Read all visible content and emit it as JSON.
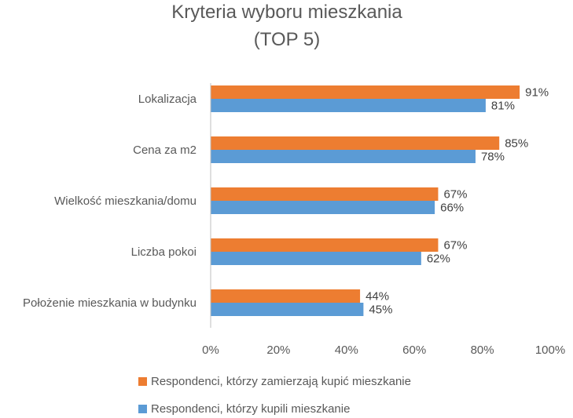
{
  "chart_data": {
    "type": "bar",
    "orientation": "horizontal",
    "title": [
      "Kryteria wyboru mieszkania",
      "(TOP 5)"
    ],
    "categories": [
      "Lokalizacja",
      "Cena za m2",
      "Wielkość mieszkania/domu",
      "Liczba pokoi",
      "Położenie mieszkania w budynku"
    ],
    "series": [
      {
        "name": "Respondenci, którzy zamierzają kupić mieszkanie",
        "color": "#ED7D31",
        "values": [
          91,
          85,
          67,
          67,
          44
        ],
        "labels": [
          "91%",
          "85%",
          "67%",
          "67%",
          "44%"
        ]
      },
      {
        "name": "Respondenci, którzy kupili mieszkanie",
        "color": "#5B9BD5",
        "values": [
          81,
          78,
          66,
          62,
          45
        ],
        "labels": [
          "81%",
          "78%",
          "66%",
          "62%",
          "45%"
        ]
      }
    ],
    "xlim": [
      0,
      100
    ],
    "xticks": [
      0,
      20,
      40,
      60,
      80,
      100
    ],
    "xtick_labels": [
      "0%",
      "20%",
      "40%",
      "60%",
      "80%",
      "100%"
    ],
    "grid": false,
    "legend_position": "bottom"
  }
}
